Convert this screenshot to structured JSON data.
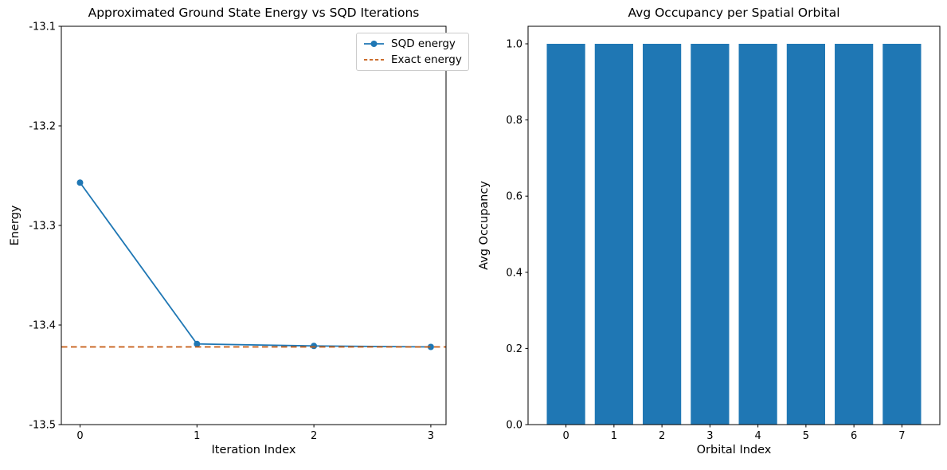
{
  "figure": {
    "background": "#ffffff",
    "line_color": "#1f77b4",
    "reference_color": "#c55a11"
  },
  "chart_data": [
    {
      "type": "line",
      "title": "Approximated Ground State Energy vs SQD Iterations",
      "xlabel": "Iteration Index",
      "ylabel": "Energy",
      "x": [
        0,
        1,
        2,
        3
      ],
      "series": [
        {
          "name": "SQD energy",
          "color": "#1f77b4",
          "marker": "circle",
          "values": [
            -13.257,
            -13.419,
            -13.421,
            -13.422
          ]
        }
      ],
      "reference_line": {
        "name": "Exact energy",
        "value": -13.422,
        "color": "#c55a11",
        "linestyle": "dashed"
      },
      "xlim": [
        -0.16,
        3.13
      ],
      "ylim": [
        -13.5,
        -13.1
      ],
      "xticks": [
        0,
        1,
        2,
        3
      ],
      "xtick_labels": [
        "0",
        "1",
        "2",
        "3"
      ],
      "yticks": [
        -13.1,
        -13.2,
        -13.3,
        -13.4,
        -13.5
      ],
      "ytick_labels": [
        "-13.1",
        "-13.2",
        "-13.3",
        "-13.4",
        "-13.5"
      ],
      "grid": false,
      "legend": {
        "location": "upper right",
        "items": [
          {
            "label": "SQD energy",
            "swatch": "line-with-circle-marker",
            "color": "#1f77b4"
          },
          {
            "label": "Exact energy",
            "swatch": "dashed-line",
            "color": "#c55a11"
          }
        ]
      }
    },
    {
      "type": "bar",
      "title": "Avg Occupancy per Spatial Orbital",
      "xlabel": "Orbital Index",
      "ylabel": "Avg Occupancy",
      "categories": [
        "0",
        "1",
        "2",
        "3",
        "4",
        "5",
        "6",
        "7"
      ],
      "values": [
        1.0,
        1.0,
        1.0,
        1.0,
        1.0,
        1.0,
        1.0,
        1.0
      ],
      "bar_color": "#1f77b4",
      "bar_width": 0.8,
      "xlim": [
        -0.79,
        7.79
      ],
      "ylim": [
        0,
        1.046
      ],
      "yticks": [
        0.0,
        0.2,
        0.4,
        0.6,
        0.8,
        1.0
      ],
      "ytick_labels": [
        "0.0",
        "0.2",
        "0.4",
        "0.6",
        "0.8",
        "1.0"
      ],
      "grid": false,
      "legend": null
    }
  ]
}
